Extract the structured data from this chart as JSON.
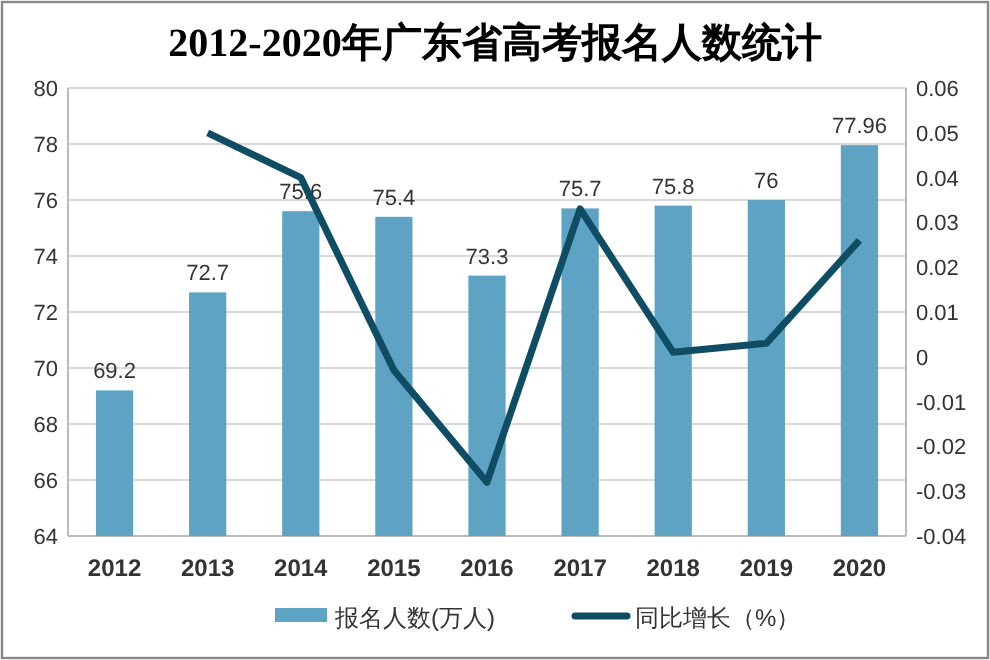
{
  "chart_data": {
    "type": "bar",
    "title": "2012-2020年广东省高考报名人数统计",
    "categories": [
      "2012",
      "2013",
      "2014",
      "2015",
      "2016",
      "2017",
      "2018",
      "2019",
      "2020"
    ],
    "series": [
      {
        "name": "报名人数(万人)",
        "color": "#5fa3c4",
        "values": [
          69.2,
          72.7,
          75.6,
          75.4,
          73.3,
          75.7,
          75.8,
          76,
          77.96
        ],
        "value_labels": [
          "69.2",
          "72.7",
          "75.6",
          "75.4",
          "73.3",
          "75.7",
          "75.8",
          "76",
          "77.96"
        ]
      },
      {
        "name": "同比增长（%）",
        "type": "line",
        "axis": "y2",
        "color": "#0e4d64",
        "values": [
          null,
          0.05,
          0.04,
          -0.003,
          -0.028,
          0.033,
          0.001,
          0.003,
          0.026
        ]
      }
    ],
    "ylim": [
      64,
      80
    ],
    "yticks": [
      64,
      66,
      68,
      70,
      72,
      74,
      76,
      78,
      80
    ],
    "y2lim": [
      -0.04,
      0.06
    ],
    "y2ticks": [
      -0.04,
      -0.03,
      -0.02,
      -0.01,
      0,
      0.01,
      0.02,
      0.03,
      0.04,
      0.05,
      0.06
    ],
    "grid": "y",
    "legend": "bottom",
    "marker": "none",
    "line_style": "solid"
  }
}
